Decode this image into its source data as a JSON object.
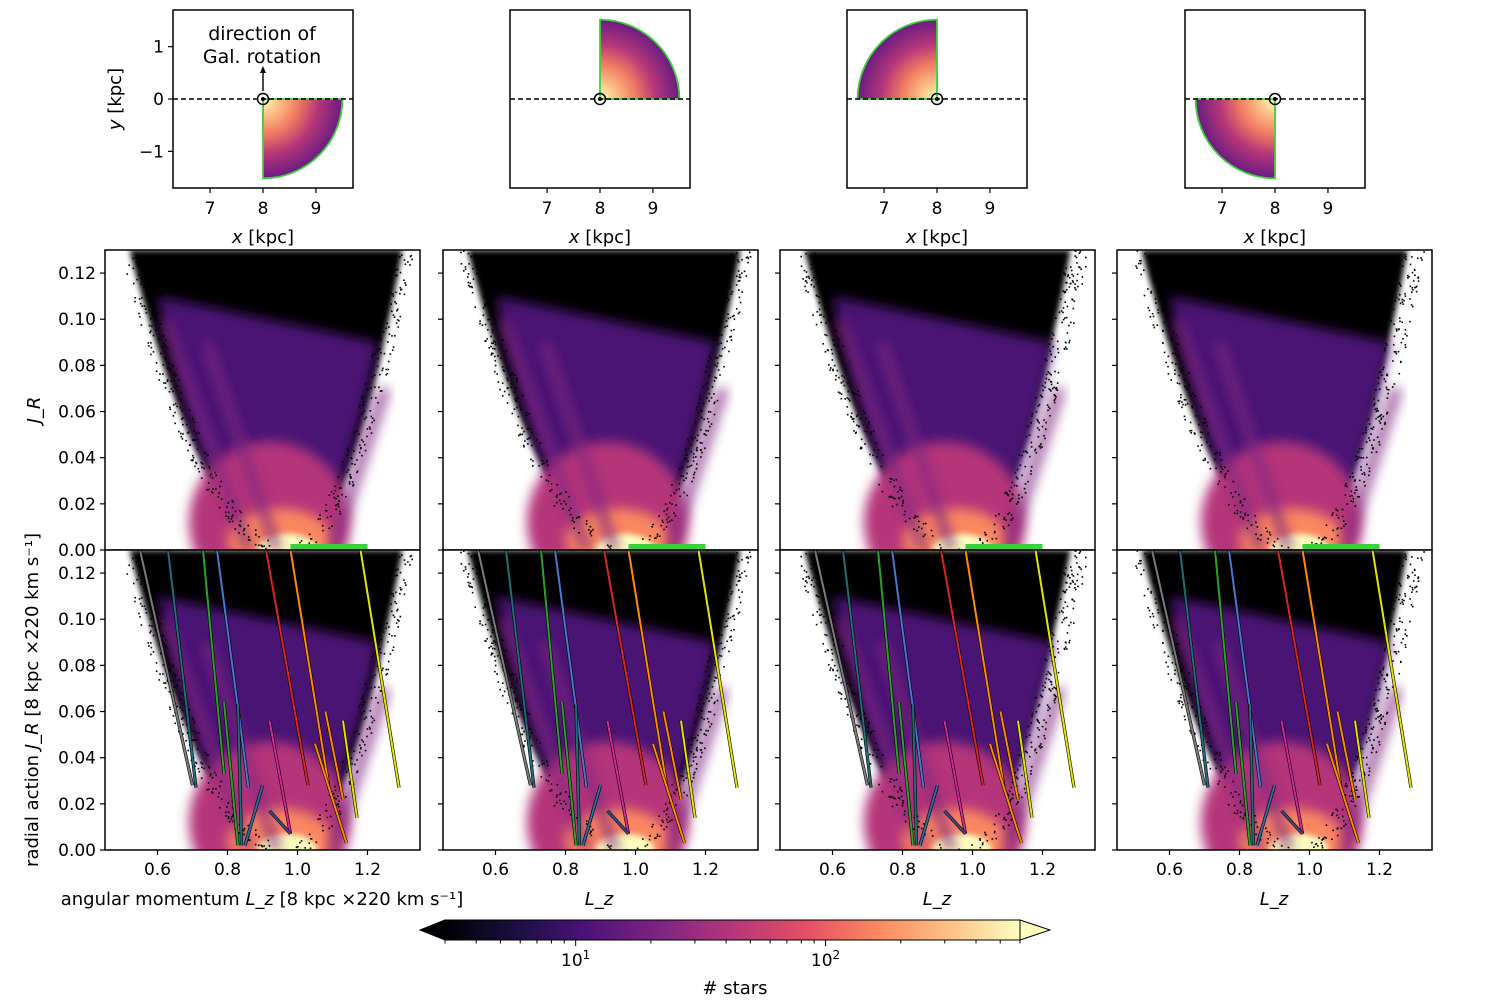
{
  "chart_data": {
    "type": "heatmap",
    "title": "",
    "colormap": "magma",
    "colors": {
      "outline": "#3cd03c",
      "frame": "#000000",
      "background": "#ffffff"
    },
    "maps": {
      "xlabel_text": "x [kpc]",
      "ylabel_text": "y [kpc]",
      "xlim": [
        6.3,
        9.7
      ],
      "ylim": [
        -1.7,
        1.7
      ],
      "x_ticks": [
        {
          "v": 7,
          "label": "7"
        },
        {
          "v": 8,
          "label": "8"
        },
        {
          "v": 9,
          "label": "9"
        }
      ],
      "y_ticks": [
        {
          "v": 1,
          "label": "1"
        },
        {
          "v": 0,
          "label": "0"
        },
        {
          "v": -1,
          "label": "−1"
        }
      ],
      "sun_position": {
        "x": 8.0,
        "y": 0.0
      },
      "annotation_line1": "direction of",
      "annotation_line2": "Gal. rotation",
      "wedges": [
        {
          "panel": 1,
          "theta_range_deg": [
            -90,
            0
          ],
          "r_range_kpc": [
            0,
            1.5
          ]
        },
        {
          "panel": 2,
          "theta_range_deg": [
            0,
            90
          ],
          "r_range_kpc": [
            0,
            1.5
          ]
        },
        {
          "panel": 3,
          "theta_range_deg": [
            90,
            180
          ],
          "r_range_kpc": [
            0,
            1.5
          ]
        },
        {
          "panel": 4,
          "theta_range_deg": [
            180,
            270
          ],
          "r_range_kpc": [
            0,
            1.5
          ]
        }
      ]
    },
    "actions": {
      "xlim": [
        0.45,
        1.35
      ],
      "ylim": [
        0.0,
        0.13
      ],
      "x_ticks": [
        {
          "v": 0.6,
          "label": "0.6"
        },
        {
          "v": 0.8,
          "label": "0.8"
        },
        {
          "v": 1.0,
          "label": "1.0"
        },
        {
          "v": 1.2,
          "label": "1.2"
        }
      ],
      "y_ticks": [
        {
          "v": 0.0,
          "label": "0.00"
        },
        {
          "v": 0.02,
          "label": "0.02"
        },
        {
          "v": 0.04,
          "label": "0.04"
        },
        {
          "v": 0.06,
          "label": "0.06"
        },
        {
          "v": 0.08,
          "label": "0.08"
        },
        {
          "v": 0.1,
          "label": "0.10"
        },
        {
          "v": 0.12,
          "label": "0.12"
        }
      ],
      "top_ylabel": "J_R",
      "bottom_ylabel_prefix": "radial action ",
      "bottom_ylabel_symbol": "J_R",
      "bottom_ylabel_units": " [8 kpc ×220 km s⁻¹]",
      "left_xlabel_prefix": "angular momentum ",
      "left_xlabel_symbol": "L_z",
      "left_xlabel_units": " [8 kpc ×220 km s⁻¹]",
      "other_xlabel": "L_z",
      "green_band_Lz": [
        0.98,
        1.2
      ],
      "ridge_lines": [
        {
          "name": "gray",
          "color": "#7b7b7b",
          "Lz": [
            0.55,
            0.7
          ],
          "JR": [
            0.13,
            0.028
          ]
        },
        {
          "name": "teal",
          "color": "#1f6f78",
          "Lz": [
            0.63,
            0.71
          ],
          "JR": [
            0.13,
            0.027
          ]
        },
        {
          "name": "green",
          "color": "#2ca02c",
          "Lz": [
            0.73,
            0.79
          ],
          "JR": [
            0.13,
            0.033
          ]
        },
        {
          "name": "blue",
          "color": "#4878cf",
          "Lz": [
            0.77,
            0.86
          ],
          "JR": [
            0.13,
            0.027
          ]
        },
        {
          "name": "red",
          "color": "#d62728",
          "Lz": [
            0.91,
            1.03
          ],
          "JR": [
            0.13,
            0.028
          ]
        },
        {
          "name": "orange",
          "color": "#ff8c00",
          "Lz": [
            0.98,
            1.09
          ],
          "JR": [
            0.13,
            0.027
          ]
        },
        {
          "name": "yellow",
          "color": "#e5e500",
          "Lz": [
            1.18,
            1.29
          ],
          "JR": [
            0.13,
            0.027
          ]
        },
        {
          "name": "green-short",
          "color": "#2ca02c",
          "Lz": [
            0.79,
            0.83
          ],
          "JR": [
            0.064,
            0.002
          ]
        },
        {
          "name": "teal-short",
          "color": "#1f6f78",
          "Lz": [
            0.83,
            0.84
          ],
          "JR": [
            0.063,
            0.002
          ]
        },
        {
          "name": "steel-short",
          "color": "#2c6e9e",
          "Lz": [
            0.9,
            0.85
          ],
          "JR": [
            0.028,
            0.002
          ]
        },
        {
          "name": "magenta-short",
          "color": "#d6279c",
          "Lz": [
            0.92,
            0.98
          ],
          "JR": [
            0.056,
            0.007
          ]
        },
        {
          "name": "slate-short",
          "color": "#3c4a8a",
          "Lz": [
            0.92,
            0.98
          ],
          "JR": [
            0.017,
            0.007
          ]
        },
        {
          "name": "orange-short",
          "color": "#ff8c00",
          "Lz": [
            1.05,
            1.14
          ],
          "JR": [
            0.046,
            0.003
          ]
        },
        {
          "name": "orange-mid",
          "color": "#ff8c00",
          "Lz": [
            1.08,
            1.13
          ],
          "JR": [
            0.06,
            0.022
          ]
        },
        {
          "name": "yellow-short",
          "color": "#e5e500",
          "Lz": [
            1.13,
            1.17
          ],
          "JR": [
            0.056,
            0.014
          ]
        }
      ]
    },
    "colorbar": {
      "label": "# stars",
      "scale": "log",
      "range": [
        3,
        600
      ],
      "ticks": [
        {
          "v": 10,
          "base": "10",
          "exp": "1"
        },
        {
          "v": 100,
          "base": "10",
          "exp": "2"
        }
      ],
      "extend": "both"
    }
  }
}
